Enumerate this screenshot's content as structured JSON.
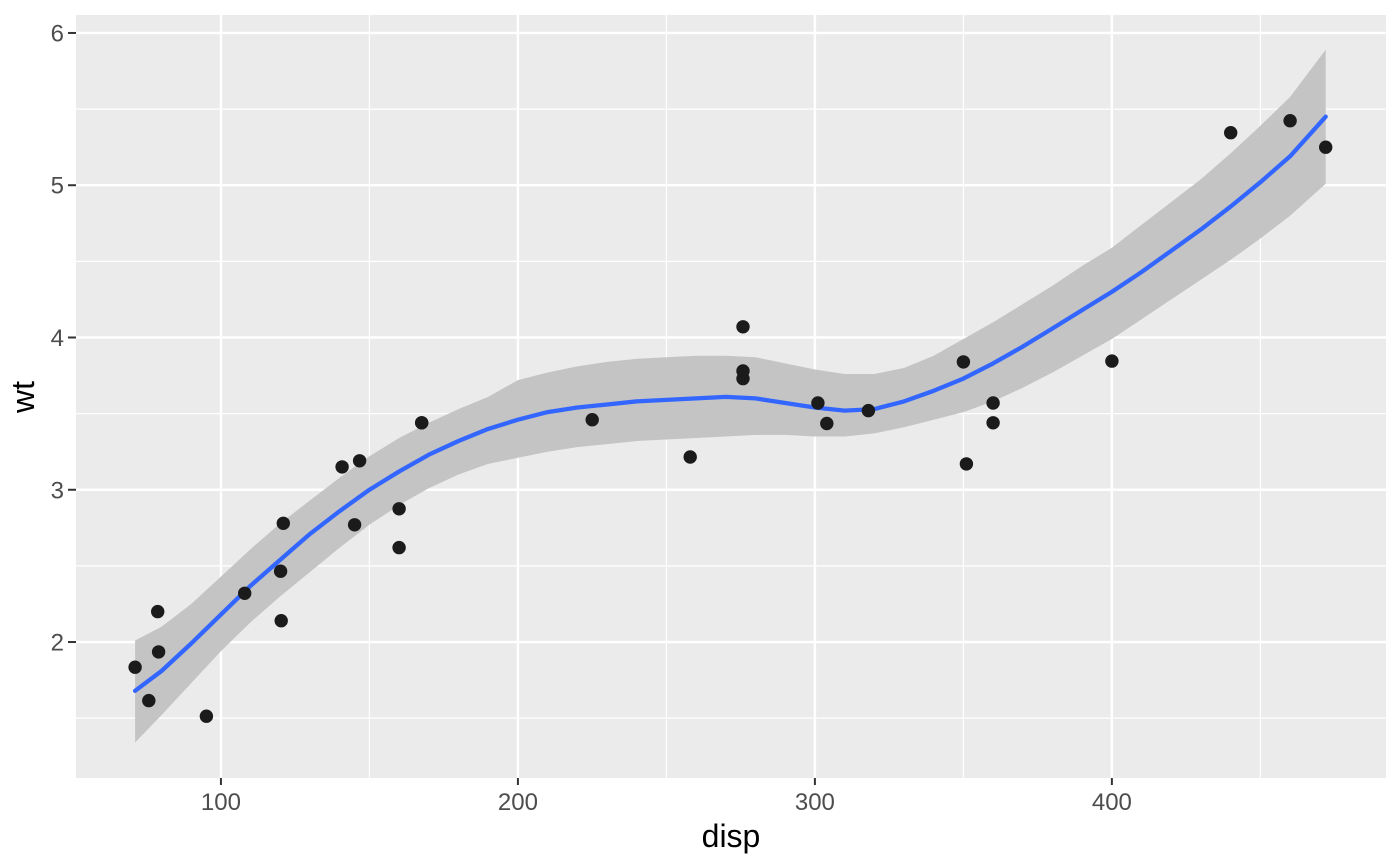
{
  "chart_data": {
    "type": "scatter",
    "title": "",
    "xlabel": "disp",
    "ylabel": "wt",
    "legend": false,
    "grid": true,
    "xlim": [
      51.2,
      492.3
    ],
    "ylim": [
      1.107,
      6.118
    ],
    "x_ticks": [
      100,
      200,
      300,
      400
    ],
    "x_minor_ticks": [
      50,
      150,
      250,
      350,
      450
    ],
    "y_ticks": [
      2,
      3,
      4,
      5,
      6
    ],
    "y_minor_ticks": [
      1.5,
      2.5,
      3.5,
      4.5,
      5.5
    ],
    "points": [
      [
        160.0,
        2.62
      ],
      [
        160.0,
        2.875
      ],
      [
        108.0,
        2.32
      ],
      [
        258.0,
        3.215
      ],
      [
        360.0,
        3.44
      ],
      [
        225.0,
        3.46
      ],
      [
        360.0,
        3.57
      ],
      [
        146.7,
        3.19
      ],
      [
        140.8,
        3.15
      ],
      [
        167.6,
        3.44
      ],
      [
        167.6,
        3.44
      ],
      [
        275.8,
        4.07
      ],
      [
        275.8,
        3.73
      ],
      [
        275.8,
        3.78
      ],
      [
        472.0,
        5.25
      ],
      [
        460.0,
        5.424
      ],
      [
        440.0,
        5.345
      ],
      [
        78.7,
        2.2
      ],
      [
        75.7,
        1.615
      ],
      [
        71.1,
        1.835
      ],
      [
        120.1,
        2.465
      ],
      [
        318.0,
        3.52
      ],
      [
        304.0,
        3.435
      ],
      [
        350.0,
        3.84
      ],
      [
        400.0,
        3.845
      ],
      [
        79.0,
        1.935
      ],
      [
        120.3,
        2.14
      ],
      [
        95.1,
        1.513
      ],
      [
        351.0,
        3.17
      ],
      [
        145.0,
        2.77
      ],
      [
        301.0,
        3.57
      ],
      [
        121.0,
        2.78
      ]
    ],
    "smooth_line": [
      [
        71.1,
        1.68
      ],
      [
        80,
        1.81
      ],
      [
        90,
        1.99
      ],
      [
        100,
        2.18
      ],
      [
        110,
        2.37
      ],
      [
        120,
        2.54
      ],
      [
        130,
        2.71
      ],
      [
        140,
        2.86
      ],
      [
        150,
        3.0
      ],
      [
        160,
        3.12
      ],
      [
        170,
        3.23
      ],
      [
        180,
        3.32
      ],
      [
        190,
        3.4
      ],
      [
        200,
        3.46
      ],
      [
        210,
        3.51
      ],
      [
        220,
        3.54
      ],
      [
        230,
        3.56
      ],
      [
        240,
        3.58
      ],
      [
        250,
        3.59
      ],
      [
        260,
        3.6
      ],
      [
        270,
        3.61
      ],
      [
        280,
        3.6
      ],
      [
        290,
        3.57
      ],
      [
        300,
        3.54
      ],
      [
        310,
        3.52
      ],
      [
        320,
        3.53
      ],
      [
        330,
        3.58
      ],
      [
        340,
        3.65
      ],
      [
        350,
        3.73
      ],
      [
        360,
        3.83
      ],
      [
        370,
        3.94
      ],
      [
        380,
        4.06
      ],
      [
        390,
        4.18
      ],
      [
        400,
        4.3
      ],
      [
        410,
        4.43
      ],
      [
        420,
        4.57
      ],
      [
        430,
        4.71
      ],
      [
        440,
        4.86
      ],
      [
        450,
        5.02
      ],
      [
        460,
        5.19
      ],
      [
        472,
        5.45
      ]
    ],
    "confidence_band": [
      [
        71.1,
        1.34,
        2.01
      ],
      [
        80,
        1.52,
        2.1
      ],
      [
        90,
        1.73,
        2.25
      ],
      [
        100,
        1.94,
        2.43
      ],
      [
        110,
        2.13,
        2.61
      ],
      [
        120,
        2.3,
        2.78
      ],
      [
        130,
        2.46,
        2.93
      ],
      [
        140,
        2.62,
        3.08
      ],
      [
        150,
        2.77,
        3.22
      ],
      [
        160,
        2.9,
        3.34
      ],
      [
        170,
        3.01,
        3.44
      ],
      [
        180,
        3.1,
        3.53
      ],
      [
        190,
        3.17,
        3.61
      ],
      [
        200,
        3.21,
        3.72
      ],
      [
        210,
        3.25,
        3.77
      ],
      [
        220,
        3.28,
        3.81
      ],
      [
        230,
        3.3,
        3.84
      ],
      [
        240,
        3.32,
        3.86
      ],
      [
        250,
        3.33,
        3.87
      ],
      [
        260,
        3.34,
        3.88
      ],
      [
        270,
        3.35,
        3.88
      ],
      [
        280,
        3.36,
        3.87
      ],
      [
        290,
        3.36,
        3.83
      ],
      [
        300,
        3.35,
        3.79
      ],
      [
        310,
        3.35,
        3.76
      ],
      [
        320,
        3.37,
        3.76
      ],
      [
        330,
        3.41,
        3.8
      ],
      [
        340,
        3.46,
        3.88
      ],
      [
        350,
        3.51,
        3.99
      ],
      [
        360,
        3.58,
        4.1
      ],
      [
        370,
        3.67,
        4.22
      ],
      [
        380,
        3.77,
        4.34
      ],
      [
        390,
        3.88,
        4.47
      ],
      [
        400,
        3.99,
        4.59
      ],
      [
        410,
        4.12,
        4.74
      ],
      [
        420,
        4.25,
        4.89
      ],
      [
        430,
        4.38,
        5.04
      ],
      [
        440,
        4.51,
        5.21
      ],
      [
        450,
        4.65,
        5.39
      ],
      [
        460,
        4.8,
        5.58
      ],
      [
        472,
        5.01,
        5.89
      ]
    ],
    "colors": {
      "outer_background": "#FFFFFF",
      "panel_background": "#EBEBEB",
      "grid": "#FFFFFF",
      "confidence_band": "#C4C4C4",
      "smooth_line": "#3366FF",
      "point": "#1B1B1B",
      "tick_mark": "#333333",
      "axis_text": "#4D4D4D",
      "axis_title": "#000000"
    }
  }
}
